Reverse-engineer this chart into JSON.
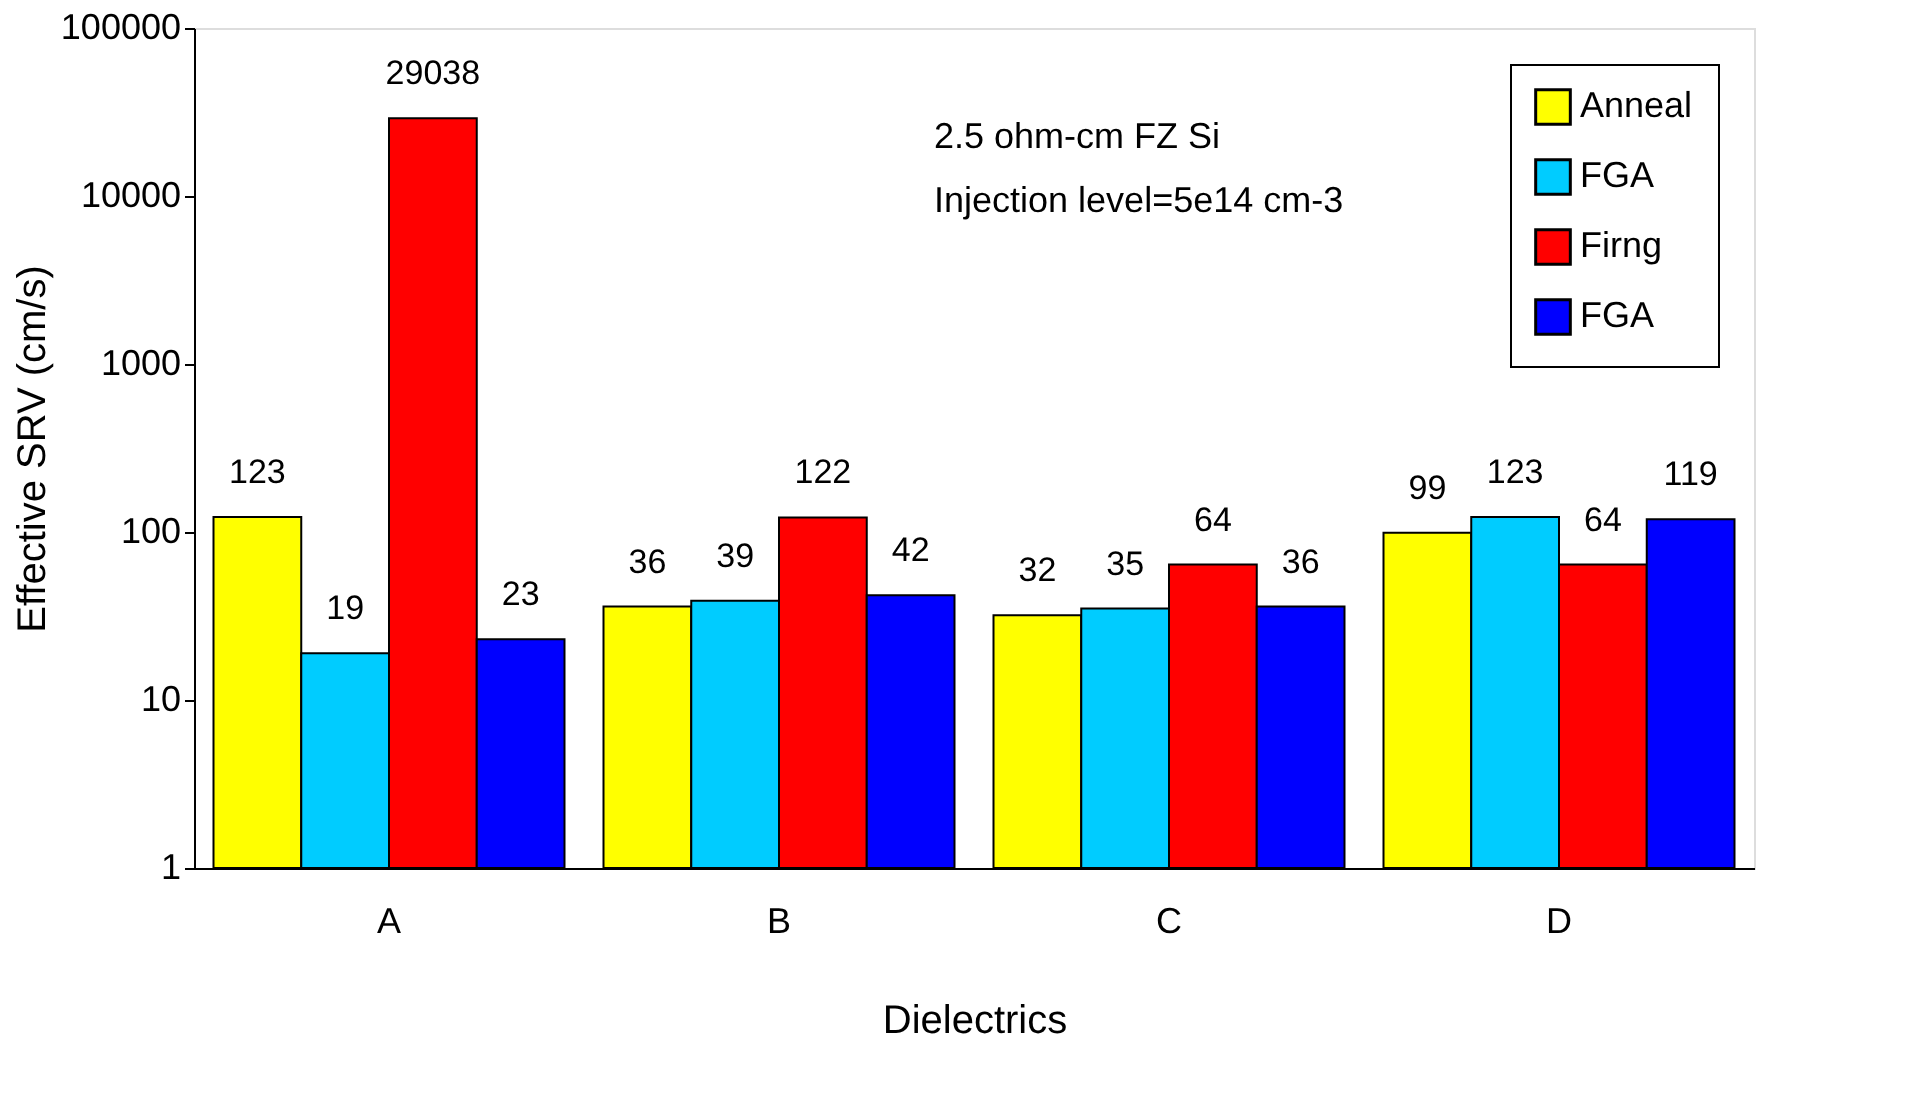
{
  "chart_data": {
    "type": "bar",
    "xlabel": "Dielectrics",
    "ylabel": "Effective SRV (cm/s)",
    "categories": [
      "A",
      "B",
      "C",
      "D"
    ],
    "series": [
      {
        "name": "Anneal",
        "color": "#ffff00",
        "values": [
          123,
          36,
          32,
          99
        ]
      },
      {
        "name": "FGA",
        "color": "#00ccff",
        "values": [
          19,
          39,
          35,
          123
        ]
      },
      {
        "name": "Firng",
        "color": "#ff0000",
        "values": [
          29038,
          122,
          64,
          64
        ]
      },
      {
        "name": "FGA",
        "color": "#0000ff",
        "values": [
          23,
          42,
          36,
          119
        ]
      }
    ],
    "log": true,
    "ylim": [
      1,
      100000
    ],
    "yticks": [
      1,
      10,
      100,
      1000,
      10000,
      100000
    ],
    "data_labels": true,
    "grid": false,
    "legend": "top right",
    "annotations": [
      "2.5 ohm-cm FZ Si",
      "Injection level=5e14 cm-3"
    ]
  }
}
